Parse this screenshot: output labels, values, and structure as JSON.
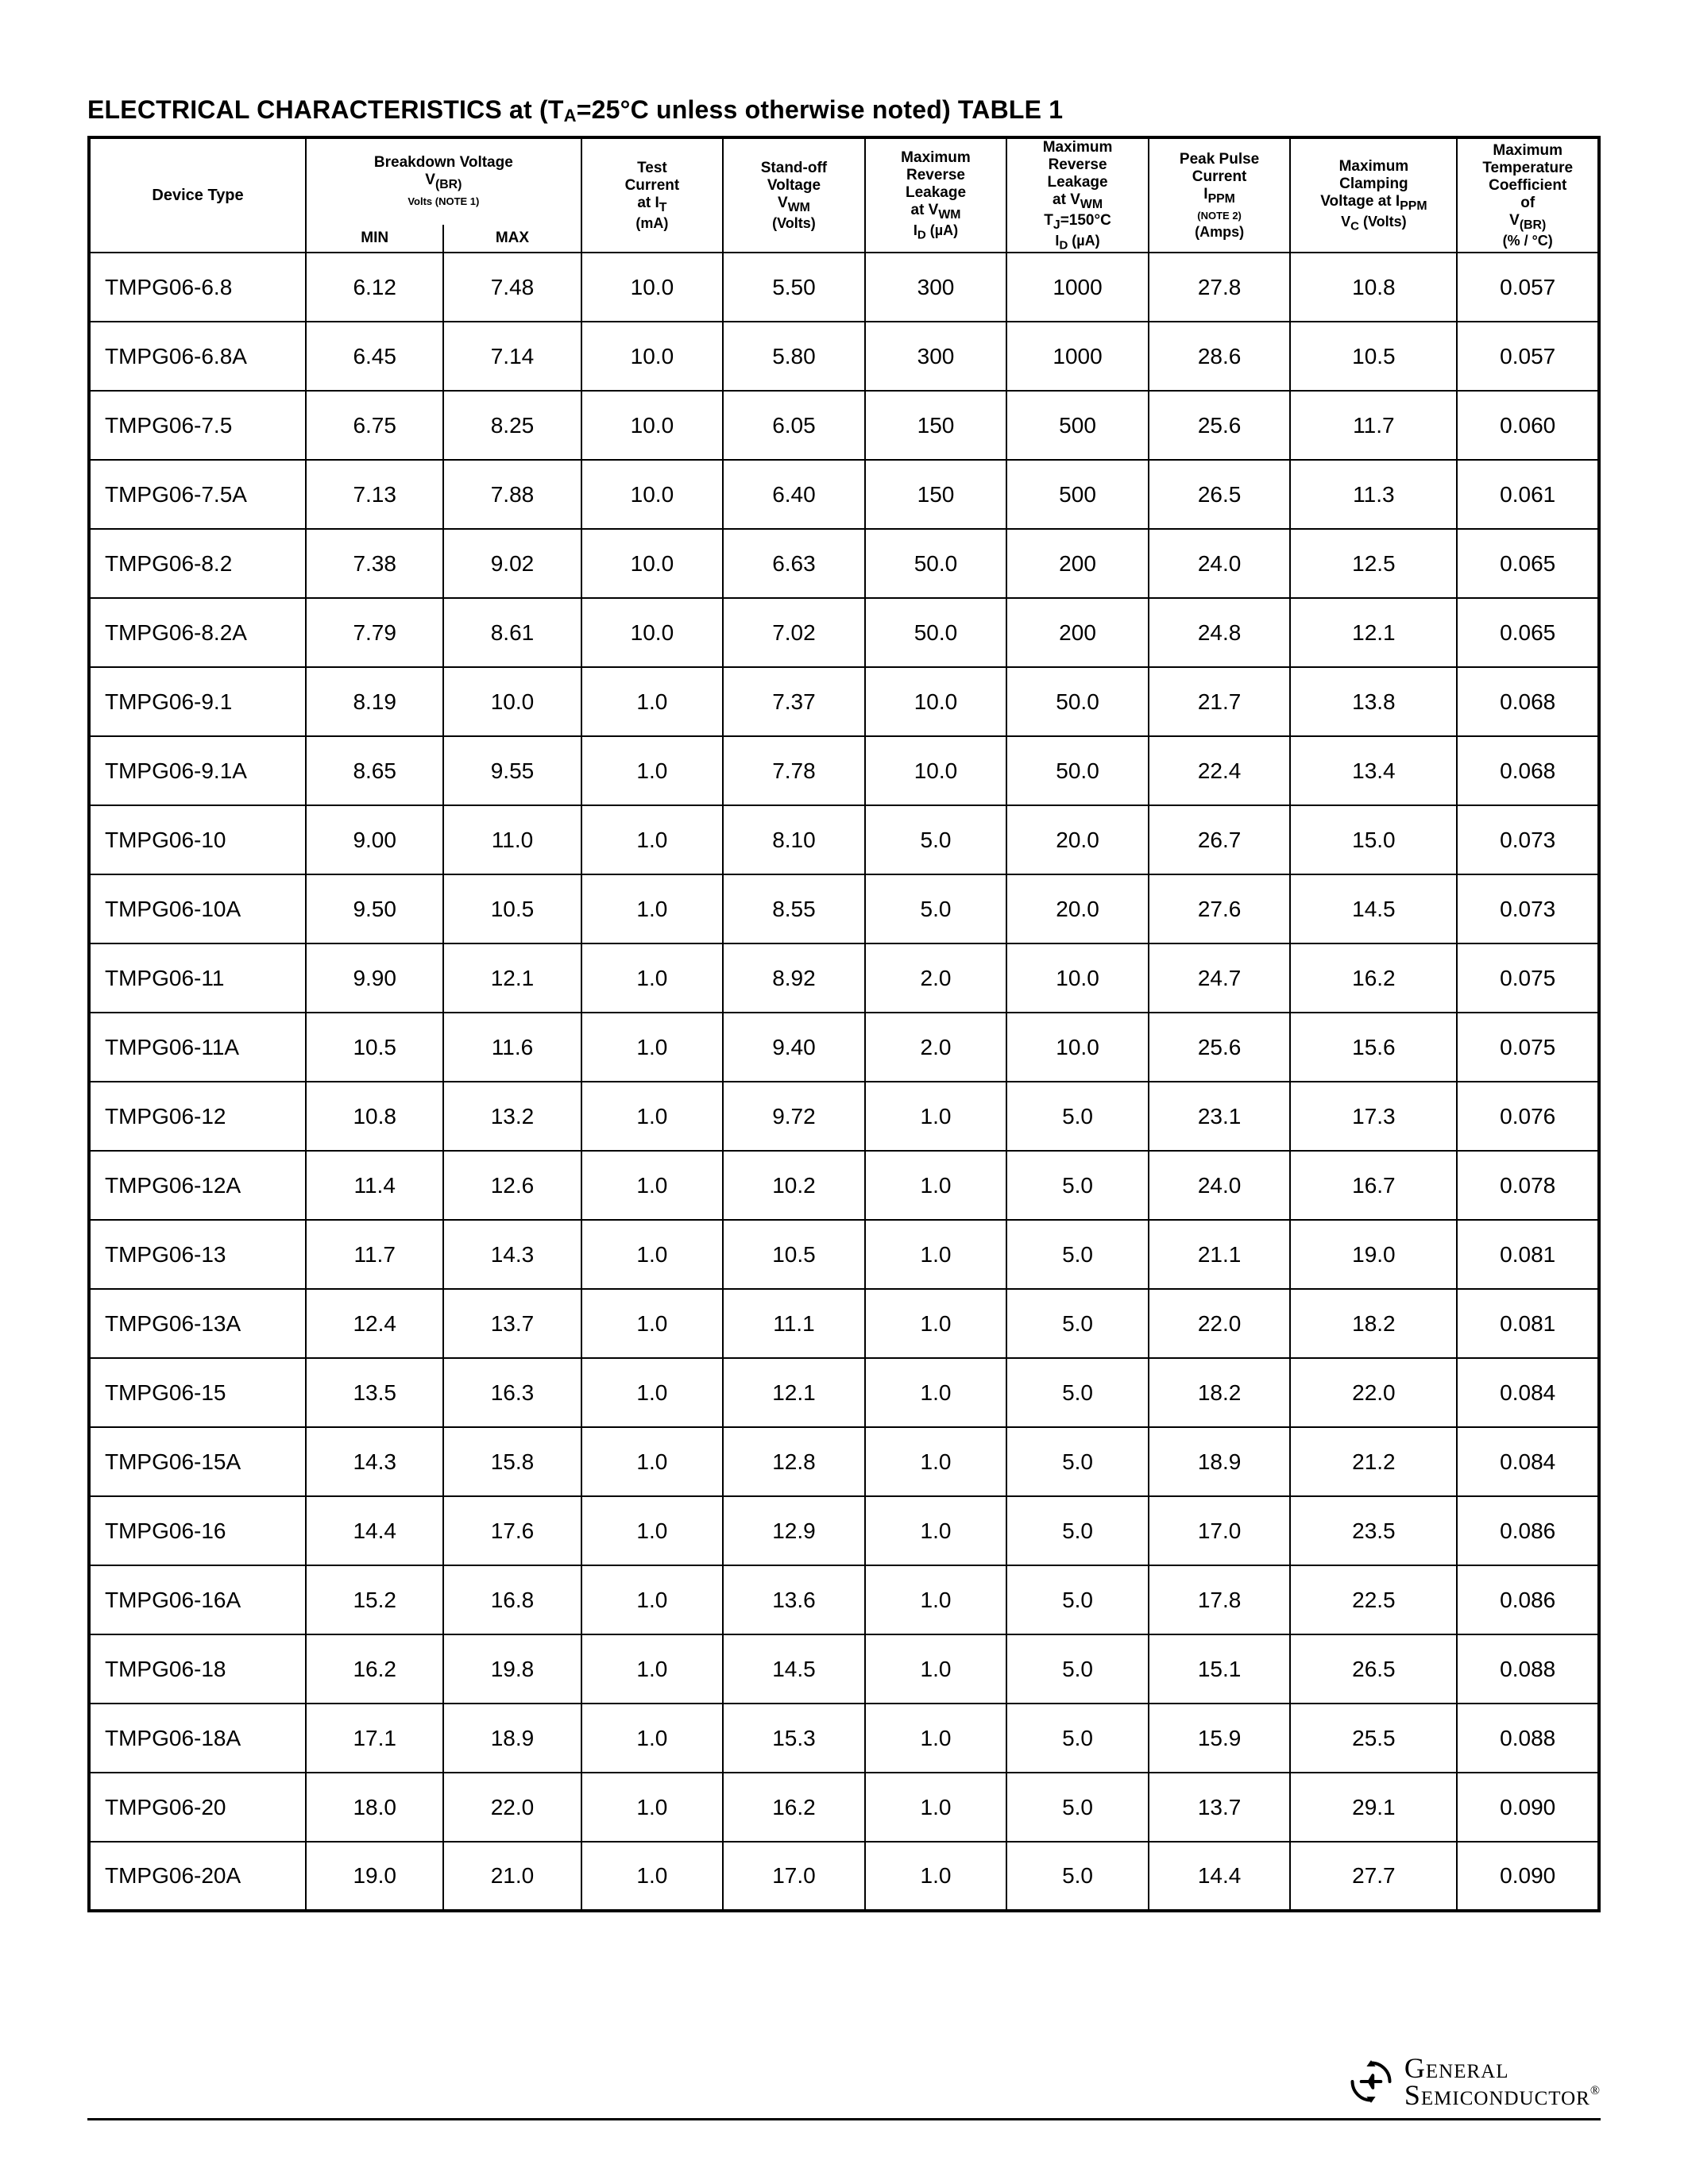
{
  "title_html": "ELECTRICAL CHARACTERISTICS at (T<sub>A</sub>=25°C unless otherwise noted) TABLE 1",
  "footer": {
    "brand_line1": "General",
    "brand_line2": "Semiconductor",
    "reg": "®"
  },
  "headers": {
    "device": "Device Type",
    "bv_group_html": "Breakdown Voltage<br>V<sub>(BR)</sub><br><span class='note'>Volts (NOTE 1)</span>",
    "bv_min": "MIN",
    "bv_max": "MAX",
    "it_html": "Test<br>Current<br>at I<sub>T</sub>",
    "it_unit": "(mA)",
    "vwm_html": "Stand-off<br>Voltage<br>V<sub>WM</sub>",
    "vwm_unit": "(Volts)",
    "id1_html": "Maximum<br>Reverse<br>Leakage<br>at V<sub>WM</sub>",
    "id1_unit_html": "I<sub>D</sub> (µA)",
    "id2_html": "Maximum<br>Reverse<br>Leakage<br>at V<sub>WM</sub><br>T<sub>J</sub>=150°C",
    "id2_unit_html": "I<sub>D</sub> (µA)",
    "ippm_html": "Peak Pulse<br>Current<br>I<sub>PPM</sub><br><span class='note'>(NOTE 2)</span>",
    "ippm_unit": "(Amps)",
    "vc_html": "Maximum<br>Clamping<br>Voltage at I<sub>PPM</sub>",
    "vc_unit_html": "V<sub>C</sub> (Volts)",
    "tc_html": "Maximum<br>Temperature<br>Coefficient<br>of<br>V<sub>(BR)</sub>",
    "tc_unit": "(% / °C)"
  },
  "table": {
    "columns": [
      "device",
      "min",
      "max",
      "it",
      "vwm",
      "id1",
      "id2",
      "ippm",
      "vc",
      "tc"
    ],
    "rows": [
      [
        "TMPG06-6.8",
        "6.12",
        "7.48",
        "10.0",
        "5.50",
        "300",
        "1000",
        "27.8",
        "10.8",
        "0.057"
      ],
      [
        "TMPG06-6.8A",
        "6.45",
        "7.14",
        "10.0",
        "5.80",
        "300",
        "1000",
        "28.6",
        "10.5",
        "0.057"
      ],
      [
        "TMPG06-7.5",
        "6.75",
        "8.25",
        "10.0",
        "6.05",
        "150",
        "500",
        "25.6",
        "11.7",
        "0.060"
      ],
      [
        "TMPG06-7.5A",
        "7.13",
        "7.88",
        "10.0",
        "6.40",
        "150",
        "500",
        "26.5",
        "11.3",
        "0.061"
      ],
      [
        "TMPG06-8.2",
        "7.38",
        "9.02",
        "10.0",
        "6.63",
        "50.0",
        "200",
        "24.0",
        "12.5",
        "0.065"
      ],
      [
        "TMPG06-8.2A",
        "7.79",
        "8.61",
        "10.0",
        "7.02",
        "50.0",
        "200",
        "24.8",
        "12.1",
        "0.065"
      ],
      [
        "TMPG06-9.1",
        "8.19",
        "10.0",
        "1.0",
        "7.37",
        "10.0",
        "50.0",
        "21.7",
        "13.8",
        "0.068"
      ],
      [
        "TMPG06-9.1A",
        "8.65",
        "9.55",
        "1.0",
        "7.78",
        "10.0",
        "50.0",
        "22.4",
        "13.4",
        "0.068"
      ],
      [
        "TMPG06-10",
        "9.00",
        "11.0",
        "1.0",
        "8.10",
        "5.0",
        "20.0",
        "26.7",
        "15.0",
        "0.073"
      ],
      [
        "TMPG06-10A",
        "9.50",
        "10.5",
        "1.0",
        "8.55",
        "5.0",
        "20.0",
        "27.6",
        "14.5",
        "0.073"
      ],
      [
        "TMPG06-11",
        "9.90",
        "12.1",
        "1.0",
        "8.92",
        "2.0",
        "10.0",
        "24.7",
        "16.2",
        "0.075"
      ],
      [
        "TMPG06-11A",
        "10.5",
        "11.6",
        "1.0",
        "9.40",
        "2.0",
        "10.0",
        "25.6",
        "15.6",
        "0.075"
      ],
      [
        "TMPG06-12",
        "10.8",
        "13.2",
        "1.0",
        "9.72",
        "1.0",
        "5.0",
        "23.1",
        "17.3",
        "0.076"
      ],
      [
        "TMPG06-12A",
        "11.4",
        "12.6",
        "1.0",
        "10.2",
        "1.0",
        "5.0",
        "24.0",
        "16.7",
        "0.078"
      ],
      [
        "TMPG06-13",
        "11.7",
        "14.3",
        "1.0",
        "10.5",
        "1.0",
        "5.0",
        "21.1",
        "19.0",
        "0.081"
      ],
      [
        "TMPG06-13A",
        "12.4",
        "13.7",
        "1.0",
        "11.1",
        "1.0",
        "5.0",
        "22.0",
        "18.2",
        "0.081"
      ],
      [
        "TMPG06-15",
        "13.5",
        "16.3",
        "1.0",
        "12.1",
        "1.0",
        "5.0",
        "18.2",
        "22.0",
        "0.084"
      ],
      [
        "TMPG06-15A",
        "14.3",
        "15.8",
        "1.0",
        "12.8",
        "1.0",
        "5.0",
        "18.9",
        "21.2",
        "0.084"
      ],
      [
        "TMPG06-16",
        "14.4",
        "17.6",
        "1.0",
        "12.9",
        "1.0",
        "5.0",
        "17.0",
        "23.5",
        "0.086"
      ],
      [
        "TMPG06-16A",
        "15.2",
        "16.8",
        "1.0",
        "13.6",
        "1.0",
        "5.0",
        "17.8",
        "22.5",
        "0.086"
      ],
      [
        "TMPG06-18",
        "16.2",
        "19.8",
        "1.0",
        "14.5",
        "1.0",
        "5.0",
        "15.1",
        "26.5",
        "0.088"
      ],
      [
        "TMPG06-18A",
        "17.1",
        "18.9",
        "1.0",
        "15.3",
        "1.0",
        "5.0",
        "15.9",
        "25.5",
        "0.088"
      ],
      [
        "TMPG06-20",
        "18.0",
        "22.0",
        "1.0",
        "16.2",
        "1.0",
        "5.0",
        "13.7",
        "29.1",
        "0.090"
      ],
      [
        "TMPG06-20A",
        "19.0",
        "21.0",
        "1.0",
        "17.0",
        "1.0",
        "5.0",
        "14.4",
        "27.7",
        "0.090"
      ]
    ]
  }
}
